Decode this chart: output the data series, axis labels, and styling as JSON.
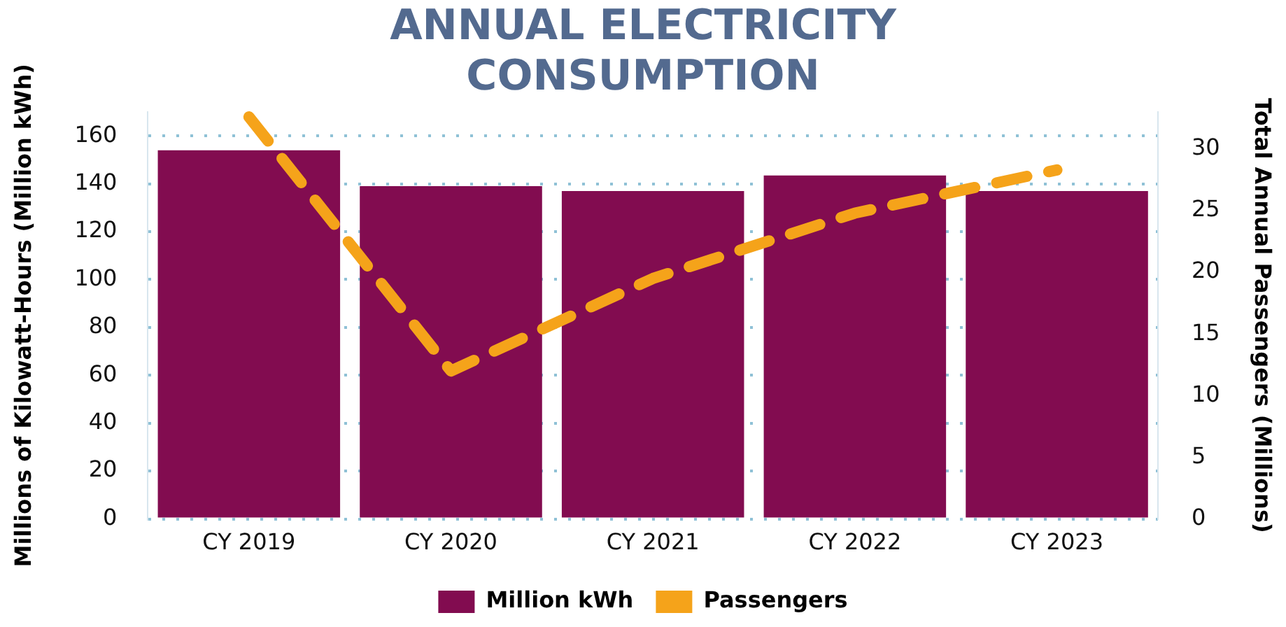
{
  "chart_data": {
    "type": "bar",
    "title": [
      "ANNUAL ELECTRICITY",
      "CONSUMPTION"
    ],
    "categories": [
      "CY 2019",
      "CY 2020",
      "CY 2021",
      "CY 2022",
      "CY 2023"
    ],
    "series": [
      {
        "name": "Million kWh",
        "color": "#820c50",
        "values": [
          154,
          139,
          137,
          143.5,
          137
        ]
      },
      {
        "name": "Passengers",
        "type": "line",
        "axis": "y2",
        "color": "#f5a31a",
        "line_style": "dashed",
        "marker": "none",
        "values": [
          32.6,
          12,
          19.5,
          24.8,
          28.3
        ]
      }
    ],
    "ylabel": "Millions of Kilowatt-Hours (Million kWh)",
    "y2label": "Total Annual Passengers (Millions)",
    "ylim": [
      0,
      170
    ],
    "yticks": [
      0,
      20,
      40,
      60,
      80,
      100,
      120,
      140,
      160
    ],
    "y2lim": [
      0,
      33
    ],
    "y2ticks": [
      0,
      5,
      10,
      15,
      20,
      25,
      30
    ],
    "grid": "y",
    "legend": "bottom"
  }
}
